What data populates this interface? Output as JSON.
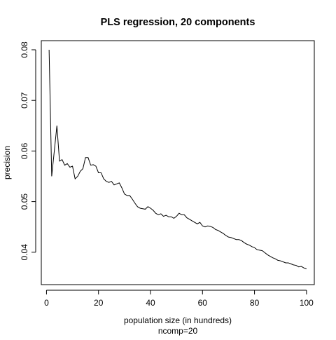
{
  "chart_data": {
    "type": "line",
    "title": "PLS regression, 20 components",
    "xlabel": "population size (in hundreds)",
    "sublabel": "ncomp=20",
    "ylabel": "precision",
    "xlim": [
      -2,
      103
    ],
    "ylim": [
      0.0336,
      0.0818
    ],
    "xticks": [
      0,
      20,
      40,
      60,
      80,
      100
    ],
    "xtick_labels": [
      "0",
      "20",
      "40",
      "60",
      "80",
      "100"
    ],
    "yticks": [
      0.04,
      0.05,
      0.06,
      0.07,
      0.08
    ],
    "ytick_labels": [
      "0.04",
      "0.05",
      "0.06",
      "0.07",
      "0.08"
    ],
    "grid": false,
    "line_color": "#000000",
    "series": [
      {
        "x": [
          1,
          2,
          3,
          4,
          5,
          6,
          7,
          8,
          9,
          10,
          11,
          12,
          13,
          14,
          15,
          16,
          17,
          18,
          19,
          20,
          21,
          22,
          23,
          24,
          25,
          26,
          27,
          28,
          29,
          30,
          31,
          32,
          33,
          34,
          35,
          36,
          37,
          38,
          39,
          40,
          41,
          42,
          43,
          44,
          45,
          46,
          47,
          48,
          49,
          50,
          51,
          52,
          53,
          54,
          55,
          56,
          57,
          58,
          59,
          60,
          61,
          62,
          63,
          64,
          65,
          66,
          67,
          68,
          69,
          70,
          71,
          72,
          73,
          74,
          75,
          76,
          77,
          78,
          79,
          80,
          81,
          82,
          83,
          84,
          85,
          86,
          87,
          88,
          89,
          90,
          91,
          92,
          93,
          94,
          95,
          96,
          97,
          98,
          99,
          100
        ],
        "values": [
          0.08,
          0.055,
          0.06,
          0.065,
          0.058,
          0.0583,
          0.0572,
          0.0575,
          0.0568,
          0.057,
          0.0545,
          0.055,
          0.056,
          0.0565,
          0.0587,
          0.0587,
          0.0572,
          0.0573,
          0.057,
          0.0557,
          0.0557,
          0.0545,
          0.054,
          0.0538,
          0.054,
          0.0533,
          0.0535,
          0.0537,
          0.0527,
          0.0515,
          0.0512,
          0.0512,
          0.0505,
          0.0497,
          0.049,
          0.0487,
          0.0486,
          0.0485,
          0.049,
          0.0487,
          0.0483,
          0.0477,
          0.0474,
          0.0476,
          0.0471,
          0.0473,
          0.047,
          0.047,
          0.0467,
          0.0471,
          0.0477,
          0.0474,
          0.0474,
          0.0468,
          0.0465,
          0.0462,
          0.0459,
          0.0456,
          0.0459,
          0.0452,
          0.045,
          0.0452,
          0.0451,
          0.0449,
          0.0445,
          0.0443,
          0.044,
          0.0437,
          0.0433,
          0.043,
          0.0429,
          0.0427,
          0.0425,
          0.0425,
          0.0423,
          0.0419,
          0.0416,
          0.0414,
          0.0411,
          0.0409,
          0.0405,
          0.0404,
          0.0403,
          0.0399,
          0.0395,
          0.0392,
          0.0389,
          0.0387,
          0.0384,
          0.0383,
          0.0381,
          0.0379,
          0.0379,
          0.0377,
          0.0375,
          0.0374,
          0.0371,
          0.0372,
          0.0369,
          0.0367
        ]
      }
    ]
  }
}
